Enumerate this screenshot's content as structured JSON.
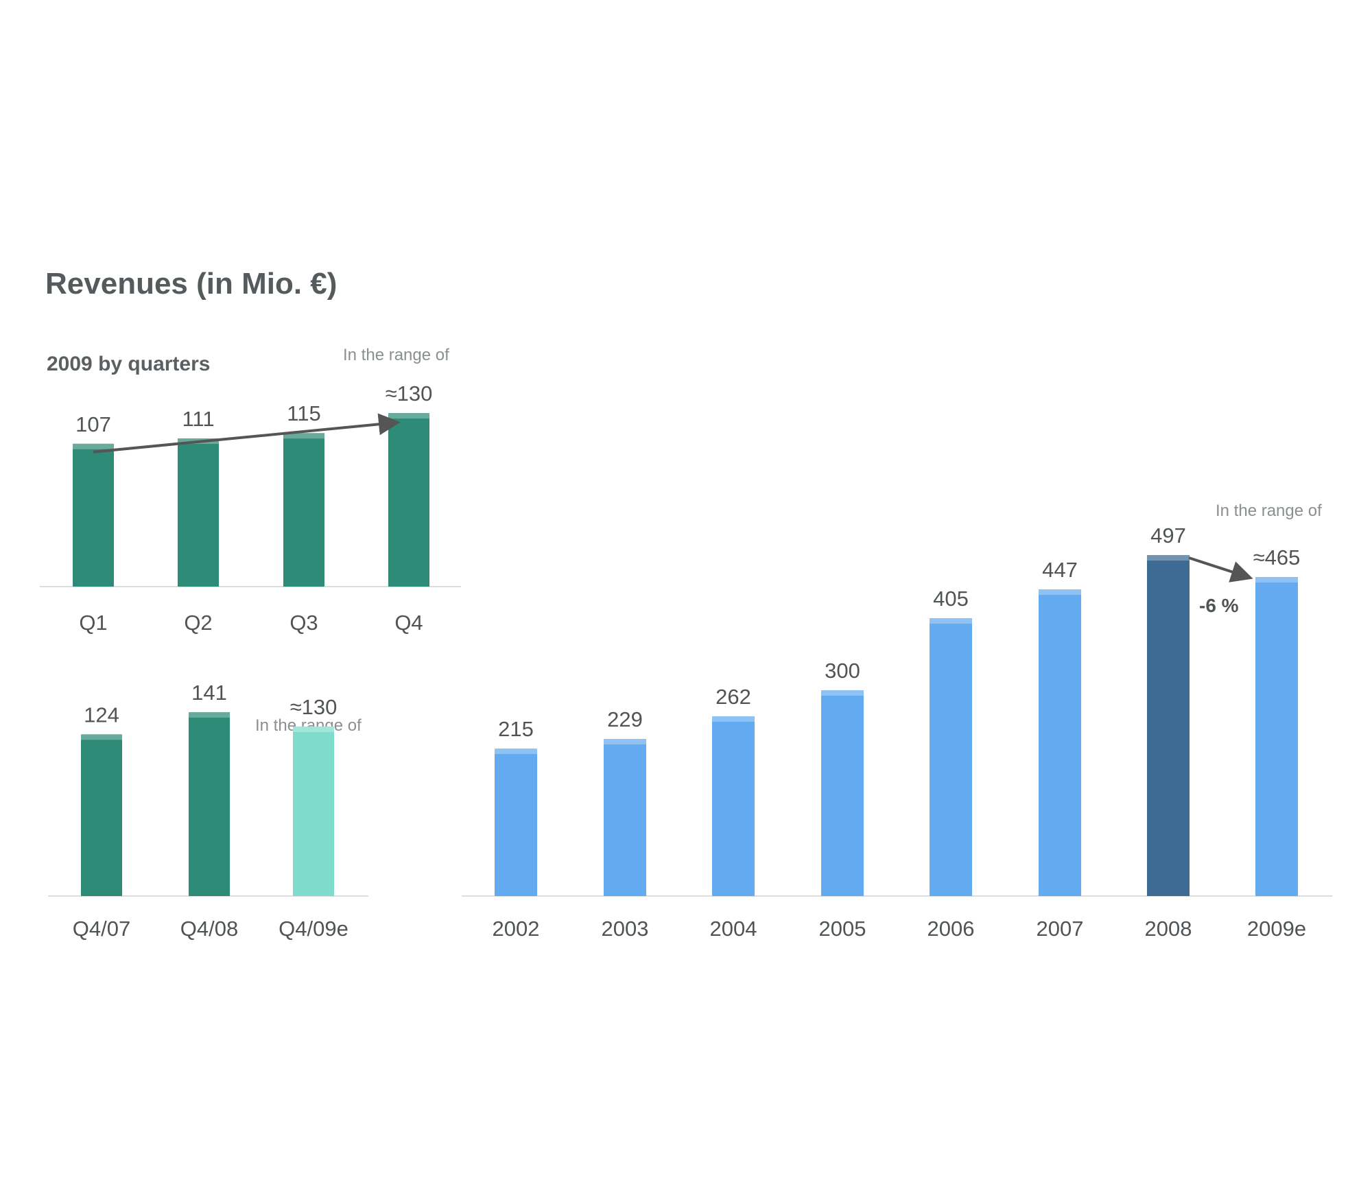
{
  "title": "Revenues (in Mio. €)",
  "colors": {
    "quarter_bar": "#2e8b78",
    "quarter_bar_light": "#7fdccc",
    "annual_bar": "#63aaf0",
    "annual_bar_highlight": "#3d6b94",
    "arrow": "#555555",
    "axis": "#dddddd"
  },
  "chart_data": [
    {
      "type": "bar",
      "subtitle": "2009 by quarters",
      "categories": [
        "Q1",
        "Q2",
        "Q3",
        "Q4"
      ],
      "values": [
        107,
        111,
        115,
        130
      ],
      "value_labels": [
        "107",
        "111",
        "115",
        "≈130"
      ],
      "annotation": "In the range of",
      "trend_arrow": {
        "from": "Q1",
        "to": "Q4"
      },
      "ylim": [
        0,
        130
      ]
    },
    {
      "type": "bar",
      "categories": [
        "Q4/07",
        "Q4/08",
        "Q4/09e"
      ],
      "values": [
        124,
        141,
        130
      ],
      "value_labels": [
        "124",
        "141",
        "≈130"
      ],
      "annotation": "In the range of",
      "highlight": "Q4/09e",
      "ylim": [
        0,
        141
      ]
    },
    {
      "type": "bar",
      "categories": [
        "2002",
        "2003",
        "2004",
        "2005",
        "2006",
        "2007",
        "2008",
        "2009e"
      ],
      "values": [
        215,
        229,
        262,
        300,
        405,
        447,
        497,
        465
      ],
      "value_labels": [
        "215",
        "229",
        "262",
        "300",
        "405",
        "447",
        "497",
        "≈465"
      ],
      "annotation": "In the range of",
      "highlight": "2008",
      "change_label": "-6 %",
      "trend_arrow": {
        "from": "2008",
        "to": "2009e"
      },
      "ylim": [
        0,
        497
      ]
    }
  ]
}
